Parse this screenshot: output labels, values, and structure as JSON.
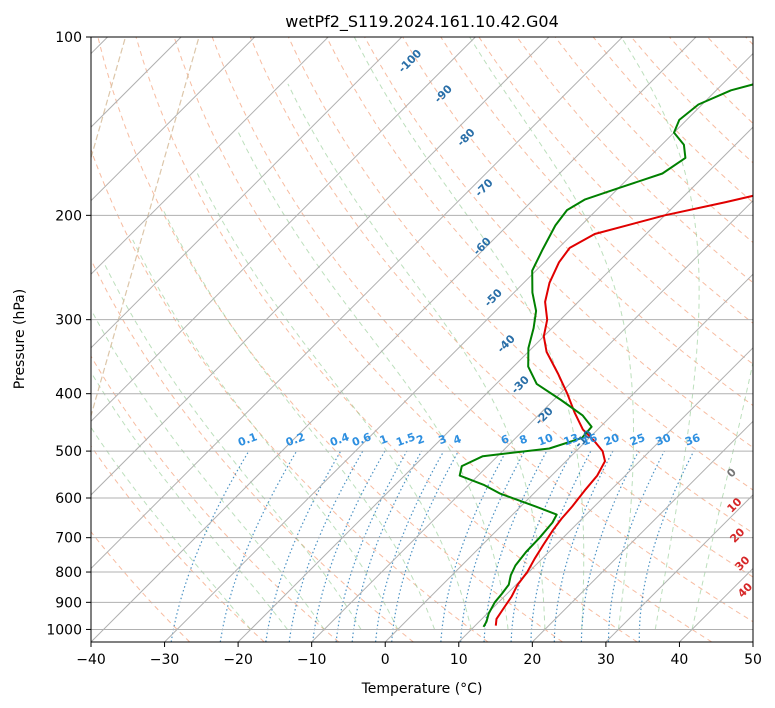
{
  "chart_data": {
    "type": "line",
    "title": "wetPf2_S119.2024.161.10.42.G04",
    "xlabel": "Temperature (°C)",
    "ylabel": "Pressure (hPa)",
    "xlim": [
      -40,
      50
    ],
    "ylim": [
      1050,
      100
    ],
    "y_scale": "log",
    "grid": true,
    "x_ticks": [
      -40,
      -30,
      -20,
      -10,
      0,
      10,
      20,
      30,
      40,
      50
    ],
    "y_ticks": [
      100,
      200,
      300,
      400,
      500,
      600,
      700,
      800,
      900,
      1000
    ],
    "skew": true,
    "series": [
      {
        "role": "temperature",
        "color": "#e00000",
        "points": [
          [
            12.8,
            985
          ],
          [
            12.0,
            960
          ],
          [
            11.5,
            920
          ],
          [
            11.0,
            880
          ],
          [
            10.2,
            840
          ],
          [
            9.8,
            800
          ],
          [
            9.0,
            760
          ],
          [
            8.3,
            720
          ],
          [
            7.6,
            680
          ],
          [
            7.2,
            650
          ],
          [
            7.0,
            620
          ],
          [
            6.5,
            580
          ],
          [
            6.2,
            550
          ],
          [
            5.3,
            520
          ],
          [
            3.6,
            500
          ],
          [
            1.0,
            480
          ],
          [
            -2.0,
            460
          ],
          [
            -5.5,
            430
          ],
          [
            -9.0,
            400
          ],
          [
            -13.0,
            370
          ],
          [
            -17.5,
            340
          ],
          [
            -20.0,
            320
          ],
          [
            -21.8,
            300
          ],
          [
            -24.5,
            280
          ],
          [
            -26.5,
            260
          ],
          [
            -28.0,
            240
          ],
          [
            -28.5,
            227
          ],
          [
            -27.0,
            215
          ],
          [
            -20.0,
            200
          ],
          [
            -13.5,
            190
          ],
          [
            -4.0,
            175
          ],
          [
            4.0,
            163
          ],
          [
            12.0,
            150
          ],
          [
            18.5,
            140
          ],
          [
            22.0,
            130
          ],
          [
            24.0,
            120
          ],
          [
            28.0,
            110
          ],
          [
            31.0,
            100
          ]
        ]
      },
      {
        "role": "dewpoint",
        "color": "#008000",
        "points": [
          [
            11.3,
            990
          ],
          [
            11.0,
            970
          ],
          [
            10.2,
            940
          ],
          [
            9.5,
            900
          ],
          [
            9.3,
            870
          ],
          [
            9.0,
            840
          ],
          [
            8.0,
            810
          ],
          [
            7.3,
            780
          ],
          [
            6.9,
            740
          ],
          [
            6.8,
            700
          ],
          [
            6.5,
            660
          ],
          [
            6.0,
            640
          ],
          [
            2.0,
            620
          ],
          [
            -4.5,
            590
          ],
          [
            -8.0,
            570
          ],
          [
            -12.5,
            550
          ],
          [
            -13.5,
            530
          ],
          [
            -12.0,
            510
          ],
          [
            -4.0,
            495
          ],
          [
            -1.0,
            475
          ],
          [
            -1.2,
            455
          ],
          [
            -4.0,
            435
          ],
          [
            -9.0,
            410
          ],
          [
            -14.5,
            385
          ],
          [
            -18.0,
            360
          ],
          [
            -20.5,
            335
          ],
          [
            -22.5,
            310
          ],
          [
            -24.5,
            290
          ],
          [
            -27.5,
            270
          ],
          [
            -30.5,
            248
          ],
          [
            -32.0,
            228
          ],
          [
            -33.5,
            208
          ],
          [
            -34.0,
            196
          ],
          [
            -33.0,
            188
          ],
          [
            -30.0,
            180
          ],
          [
            -26.0,
            170
          ],
          [
            -25.0,
            160
          ],
          [
            -27.0,
            152
          ],
          [
            -30.0,
            145
          ],
          [
            -31.0,
            138
          ],
          [
            -30.5,
            130
          ],
          [
            -28.0,
            123
          ],
          [
            -24.0,
            118
          ],
          [
            -21.0,
            112
          ],
          [
            -19.5,
            106
          ],
          [
            -17.5,
            100
          ]
        ]
      }
    ],
    "dry_adiabat_labels": [
      {
        "text": "-100",
        "T": -75.5,
        "p": 110
      },
      {
        "text": "-90",
        "T": -66.5,
        "p": 125
      },
      {
        "text": "-80",
        "T": -57.5,
        "p": 148
      },
      {
        "text": "-70",
        "T": -48.2,
        "p": 180
      },
      {
        "text": "-60",
        "T": -40.5,
        "p": 226
      },
      {
        "text": "-50",
        "T": -32.0,
        "p": 276
      },
      {
        "text": "-40",
        "T": -24.0,
        "p": 330
      },
      {
        "text": "-30",
        "T": -16.5,
        "p": 387
      },
      {
        "text": "-20",
        "T": -9.0,
        "p": 437
      },
      {
        "text": "-10",
        "T": -0.5,
        "p": 478
      }
    ],
    "mixing_ratio_labels": [
      "0.1",
      "0.2",
      "0.4",
      "0.6",
      "1",
      "1.5",
      "2",
      "3",
      "4",
      "6",
      "8",
      "10",
      "13",
      "16",
      "20",
      "25",
      "30",
      "36"
    ],
    "mixing_ratio_label_T": [
      -44.5,
      -38,
      -32,
      -29,
      -26,
      -23,
      -21,
      -18,
      -16,
      -9.5,
      -7,
      -4,
      -0.5,
      2,
      5,
      8.5,
      12,
      16
    ],
    "moist_adiabat_labels": [
      {
        "text": "0",
        "T": 24.2,
        "p": 545,
        "color": "#777777"
      },
      {
        "text": "10",
        "T": 29.0,
        "p": 618,
        "color": "#d62728"
      },
      {
        "text": "20",
        "T": 33.5,
        "p": 695,
        "color": "#d62728"
      },
      {
        "text": "30",
        "T": 38.0,
        "p": 775,
        "color": "#d62728"
      },
      {
        "text": "40",
        "T": 42.0,
        "p": 860,
        "color": "#d62728"
      }
    ]
  }
}
